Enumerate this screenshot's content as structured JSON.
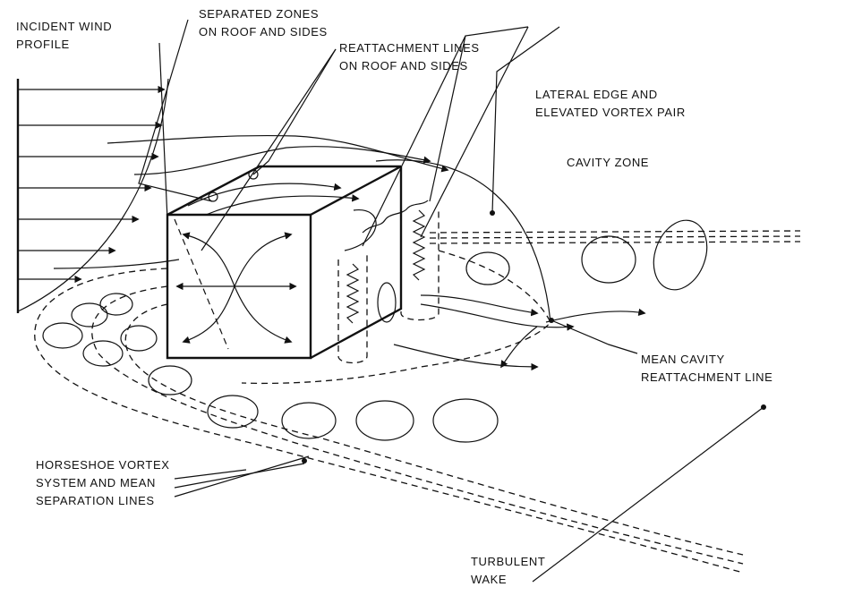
{
  "labels": {
    "incident_wind": [
      "INCIDENT WIND",
      "PROFILE"
    ],
    "separated_zones": [
      "SEPARATED ZONES",
      "ON ROOF AND SIDES"
    ],
    "reattachment_lines": [
      "REATTACHMENT LINES",
      "ON ROOF AND SIDES"
    ],
    "lateral_edge": [
      "LATERAL EDGE AND",
      "ELEVATED VORTEX PAIR"
    ],
    "cavity_zone": [
      "CAVITY ZONE"
    ],
    "mean_cavity": [
      "MEAN CAVITY",
      "REATTACHMENT LINE"
    ],
    "horseshoe": [
      "HORSESHOE VORTEX",
      "SYSTEM AND MEAN",
      "SEPARATION LINES"
    ],
    "turbulent_wake": [
      "TURBULENT",
      "WAKE"
    ]
  },
  "icons": {
    "flow_arrow": "arrowhead",
    "leader_dot": "filled-circle"
  }
}
